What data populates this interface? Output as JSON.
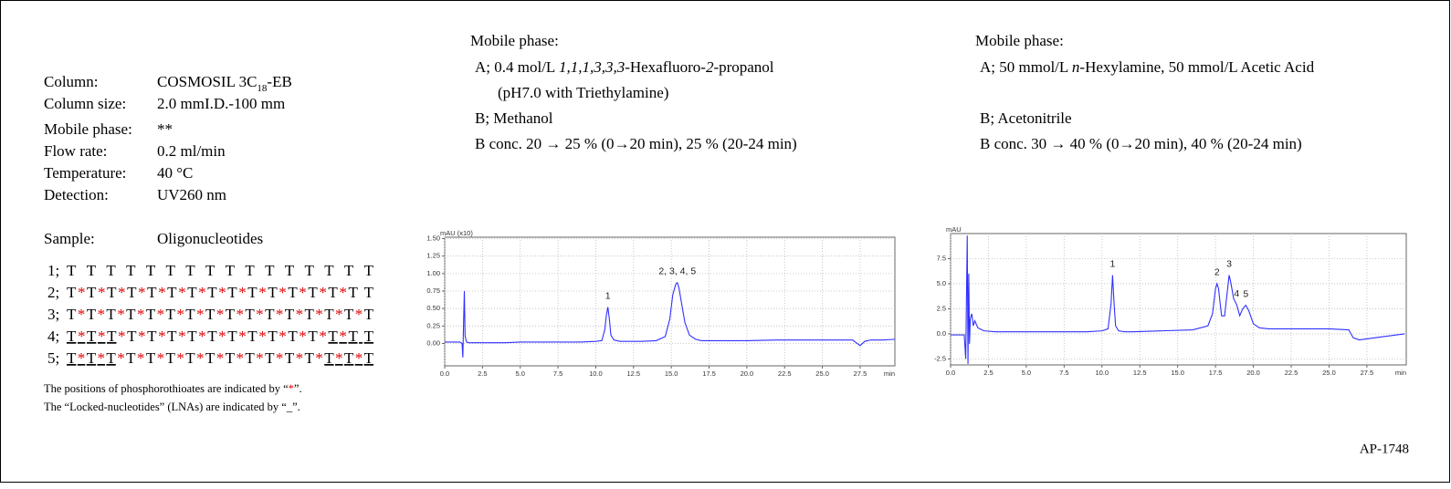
{
  "conditions": {
    "rows": [
      {
        "label": "Column:",
        "value": [
          {
            "text": "COSMOSIL 3C"
          },
          {
            "text": "18",
            "sub": true
          },
          {
            "text": "-EB"
          }
        ]
      },
      {
        "label": "Column size:",
        "value": [
          {
            "text": "2.0 mmI.D.-100 mm"
          }
        ]
      },
      {
        "label": "Mobile phase:",
        "value": [
          {
            "text": "**"
          }
        ]
      },
      {
        "label": "Flow rate:",
        "value": [
          {
            "text": "0.2 ml/min"
          }
        ]
      },
      {
        "label": "Temperature:",
        "value": [
          {
            "text": "40 °C"
          }
        ]
      },
      {
        "label": "Detection:",
        "value": [
          {
            "text": "UV260 nm"
          }
        ]
      }
    ]
  },
  "sample": {
    "label": "Sample:",
    "value": "Oligonucleotides"
  },
  "sequences": [
    {
      "label": "1;",
      "parts": [
        {
          "text": "T T T T T T T T T T T T T T T T"
        }
      ]
    },
    {
      "label": "2;",
      "parts": [
        {
          "text": "T*T*T*T*T*T*T*T*T*T*T*T*T*T*T  T"
        }
      ]
    },
    {
      "label": "3;",
      "parts": [
        {
          "text": "T*T*T*T*T*T*T*T*T*T*T*T*T*T*T*T"
        }
      ]
    },
    {
      "label": "4;",
      "parts": [
        {
          "text": "T*T*T",
          "lna": true
        },
        {
          "text": "*T*T*T*T*T*T*T*T*T*T*"
        },
        {
          "text": "T*T  T",
          "lna": true
        }
      ]
    },
    {
      "label": "5;",
      "parts": [
        {
          "text": "T*T*T",
          "lna": true
        },
        {
          "text": "*T*T*T*T*T*T*T*T*T*T*"
        },
        {
          "text": "T*T*T",
          "lna": true
        }
      ]
    }
  ],
  "notes": [
    [
      {
        "text": "The positions of phosphorothioates are indicated by “"
      },
      {
        "text": "*",
        "color": "#e00000"
      },
      {
        "text": "”."
      }
    ],
    [
      {
        "text": "The “Locked-nucleotides” (LNAs) are indicated by “"
      },
      {
        "text": "_"
      },
      {
        "text": "”."
      }
    ]
  ],
  "mobile_phases": [
    {
      "title": "Mobile phase:",
      "lines": [
        [
          {
            "text": "A; 0.4 mol/L "
          },
          {
            "text": "1,1,1,3,3,3",
            "italic": true
          },
          {
            "text": "-Hexafluoro-"
          },
          {
            "text": "2",
            "italic": true
          },
          {
            "text": "-propanol"
          }
        ],
        [
          {
            "text": "(pH7.0 with Triethylamine)"
          }
        ],
        [
          {
            "text": "B; Methanol"
          }
        ],
        [
          {
            "text": "B conc. 20 → 25 % (0→20 min), 25 % (20-24 min)"
          }
        ]
      ]
    },
    {
      "title": "Mobile phase:",
      "lines": [
        [
          {
            "text": "A; 50 mmol/L "
          },
          {
            "text": "n",
            "italic": true
          },
          {
            "text": "-Hexylamine, 50 mmol/L Acetic Acid"
          }
        ],
        [
          {
            "text": "B; Acetonitrile"
          }
        ],
        [
          {
            "text": "B conc. 30 → 40 % (0→20 min), 40 % (20-24 min)"
          }
        ]
      ]
    }
  ],
  "chart_data": [
    {
      "type": "line",
      "y_label": "mAU (x10)",
      "x_label": "min",
      "grid": true,
      "xlim": [
        0,
        29.8
      ],
      "ylim": [
        -0.32,
        1.52
      ],
      "xticks": [
        {
          "value": 0,
          "label": "0.0"
        },
        {
          "value": 2.5,
          "label": "2.5"
        },
        {
          "value": 5,
          "label": "5.0"
        },
        {
          "value": 7.5,
          "label": "7.5"
        },
        {
          "value": 10,
          "label": "10.0"
        },
        {
          "value": 12.5,
          "label": "12.5"
        },
        {
          "value": 15,
          "label": "15.0"
        },
        {
          "value": 17.5,
          "label": "17.5"
        },
        {
          "value": 20,
          "label": "20.0"
        },
        {
          "value": 22.5,
          "label": "22.5"
        },
        {
          "value": 25,
          "label": "25.0"
        },
        {
          "value": 27.5,
          "label": "27.5"
        }
      ],
      "yticks": [
        {
          "value": 0,
          "label": "0.00"
        },
        {
          "value": 0.25,
          "label": "0.25"
        },
        {
          "value": 0.5,
          "label": "0.50"
        },
        {
          "value": 0.75,
          "label": "0.75"
        },
        {
          "value": 1,
          "label": "1.00"
        },
        {
          "value": 1.25,
          "label": "1.25"
        },
        {
          "value": 1.5,
          "label": "1.50"
        }
      ],
      "x": [
        0,
        0.5,
        1.0,
        1.15,
        1.2,
        1.25,
        1.3,
        1.35,
        1.45,
        1.6,
        2,
        3,
        4,
        5,
        6,
        7,
        8,
        9,
        10,
        10.4,
        10.6,
        10.7,
        10.8,
        10.9,
        11.0,
        11.2,
        11.6,
        12,
        13,
        14,
        14.6,
        14.9,
        15.1,
        15.3,
        15.4,
        15.5,
        15.7,
        15.9,
        16.2,
        16.6,
        17,
        18,
        20,
        22,
        24,
        26,
        27,
        27.3,
        27.5,
        27.8,
        28.2,
        29,
        29.8
      ],
      "series": [
        {
          "color": "#3030ff",
          "values": [
            0.02,
            0.02,
            0.02,
            0.0,
            -0.2,
            0.3,
            0.75,
            0.1,
            0.02,
            0.01,
            0.01,
            0.01,
            0.01,
            0.02,
            0.02,
            0.02,
            0.02,
            0.02,
            0.03,
            0.04,
            0.2,
            0.4,
            0.52,
            0.35,
            0.12,
            0.05,
            0.03,
            0.03,
            0.03,
            0.04,
            0.1,
            0.35,
            0.7,
            0.85,
            0.87,
            0.8,
            0.55,
            0.3,
            0.12,
            0.06,
            0.04,
            0.04,
            0.04,
            0.05,
            0.05,
            0.05,
            0.05,
            0.0,
            -0.03,
            0.03,
            0.05,
            0.05,
            0.06
          ]
        }
      ],
      "annotations": [
        {
          "text": "1",
          "x": 10.8,
          "y": 0.52
        },
        {
          "text": "2, 3, 4, 5",
          "x": 15.4,
          "y": 0.87
        }
      ]
    },
    {
      "type": "line",
      "y_label": "mAU",
      "x_label": "min",
      "grid": true,
      "xlim": [
        0,
        30.1
      ],
      "ylim": [
        -3.1,
        10
      ],
      "xticks": [
        {
          "value": 0,
          "label": "0.0"
        },
        {
          "value": 2.5,
          "label": "2.5"
        },
        {
          "value": 5,
          "label": "5.0"
        },
        {
          "value": 7.5,
          "label": "7.5"
        },
        {
          "value": 10,
          "label": "10.0"
        },
        {
          "value": 12.5,
          "label": "12.5"
        },
        {
          "value": 15,
          "label": "15.0"
        },
        {
          "value": 17.5,
          "label": "17.5"
        },
        {
          "value": 20,
          "label": "20.0"
        },
        {
          "value": 22.5,
          "label": "22.5"
        },
        {
          "value": 25,
          "label": "25.0"
        },
        {
          "value": 27.5,
          "label": "27.5"
        }
      ],
      "yticks": [
        -2.5,
        {
          "value": 0,
          "label": "0.0"
        },
        2.5,
        {
          "value": 5,
          "label": "5.0"
        },
        7.5
      ],
      "x": [
        0,
        0.9,
        1.0,
        1.1,
        1.15,
        1.2,
        1.25,
        1.3,
        1.4,
        1.5,
        1.6,
        1.8,
        2.2,
        3,
        5,
        7,
        9,
        10,
        10.4,
        10.6,
        10.7,
        10.8,
        10.9,
        11.1,
        11.5,
        12,
        14,
        16,
        17,
        17.3,
        17.5,
        17.6,
        17.7,
        17.9,
        18.1,
        18.3,
        18.4,
        18.5,
        18.7,
        18.9,
        19.1,
        19.3,
        19.5,
        19.7,
        20,
        20.4,
        21,
        23,
        25,
        26.3,
        26.6,
        27,
        27.5,
        28.5,
        30
      ],
      "series": [
        {
          "color": "#3030ff",
          "values": [
            -0.1,
            -0.1,
            -2.5,
            9.8,
            -3.0,
            6,
            -1,
            1.5,
            2.0,
            0.8,
            1.3,
            0.6,
            0.3,
            0.2,
            0.2,
            0.2,
            0.2,
            0.3,
            0.5,
            3,
            5.85,
            3,
            0.8,
            0.3,
            0.2,
            0.2,
            0.3,
            0.4,
            0.8,
            2,
            4.5,
            5.0,
            4.5,
            1.8,
            1.8,
            4.5,
            5.85,
            5.2,
            3.5,
            2.9,
            1.8,
            2.5,
            2.85,
            2.3,
            1.0,
            0.6,
            0.5,
            0.5,
            0.5,
            0.4,
            -0.4,
            -0.6,
            -0.5,
            -0.3,
            0.0
          ]
        }
      ],
      "annotations": [
        {
          "text": "1",
          "x": 10.7,
          "y": 5.85
        },
        {
          "text": "2",
          "x": 17.6,
          "y": 5.0
        },
        {
          "text": "3",
          "x": 18.4,
          "y": 5.85
        },
        {
          "text": "4",
          "x": 18.9,
          "y": 2.9
        },
        {
          "text": "5",
          "x": 19.5,
          "y": 2.85
        }
      ]
    }
  ],
  "code": "AP-1748"
}
